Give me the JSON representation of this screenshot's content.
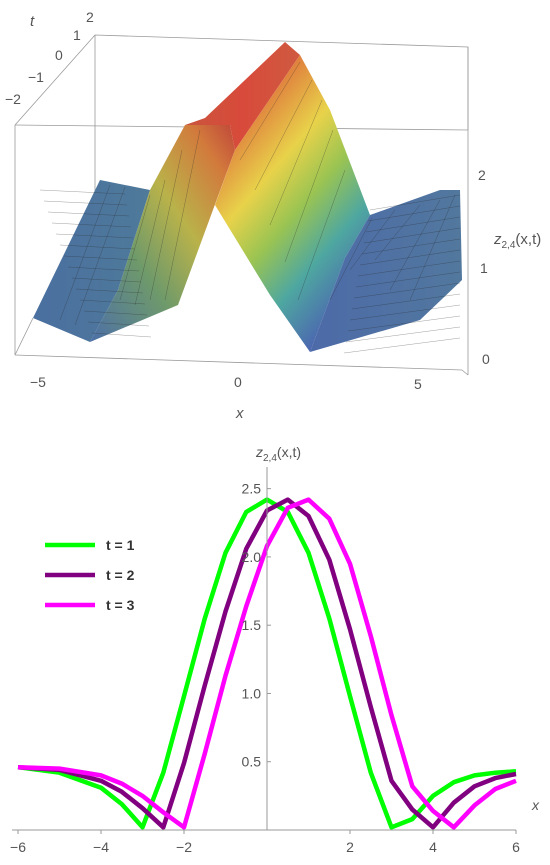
{
  "figure3d": {
    "t_axis_label": "t",
    "t_ticks": [
      "2",
      "1",
      "0",
      "−1",
      "−2"
    ],
    "x_axis_label": "x",
    "x_ticks": [
      "−5",
      "0",
      "5"
    ],
    "z_axis_label_main": "z",
    "z_axis_label_sub": "2,4",
    "z_axis_label_args": "(x,t)",
    "z_ticks": [
      "2",
      "1",
      "0"
    ]
  },
  "chart_data": {
    "type": "line",
    "ylabel_main": "z",
    "ylabel_sub": "2,4",
    "ylabel_args": "(x,t)",
    "xlabel": "x",
    "xlim": [
      -6,
      6
    ],
    "ylim": [
      0,
      2.6
    ],
    "x_ticks": [
      "−6",
      "−4",
      "−2",
      "2",
      "4",
      "6"
    ],
    "x_tick_values": [
      -6,
      -4,
      -2,
      2,
      4,
      6
    ],
    "y_ticks": [
      "0.5",
      "1.0",
      "1.5",
      "2.0",
      "2.5"
    ],
    "y_tick_values": [
      0.5,
      1.0,
      1.5,
      2.0,
      2.5
    ],
    "x": [
      -6,
      -5,
      -4,
      -3.5,
      -3,
      -2.5,
      -2,
      -1.5,
      -1,
      -0.5,
      0,
      0.5,
      1,
      1.5,
      2,
      2.5,
      3,
      3.5,
      4,
      4.5,
      5,
      5.5,
      6
    ],
    "series": [
      {
        "name": "t = 1",
        "color": "#00ff00",
        "values": [
          0.46,
          0.42,
          0.31,
          0.19,
          0.02,
          0.42,
          0.98,
          1.55,
          2.03,
          2.33,
          2.42,
          2.33,
          2.03,
          1.55,
          0.98,
          0.42,
          0.02,
          0.08,
          0.25,
          0.35,
          0.4,
          0.42,
          0.43
        ]
      },
      {
        "name": "t = 2",
        "color": "#800080",
        "values": [
          0.46,
          0.44,
          0.36,
          0.28,
          0.16,
          0.02,
          0.49,
          1.06,
          1.6,
          2.06,
          2.34,
          2.42,
          2.3,
          1.98,
          1.47,
          0.9,
          0.36,
          0.15,
          0.02,
          0.2,
          0.32,
          0.38,
          0.41
        ]
      },
      {
        "name": "t = 3",
        "color": "#ff00ff",
        "values": [
          0.46,
          0.45,
          0.4,
          0.34,
          0.25,
          0.13,
          0.02,
          0.56,
          1.13,
          1.64,
          2.08,
          2.36,
          2.42,
          2.28,
          1.95,
          1.42,
          0.84,
          0.32,
          0.14,
          0.02,
          0.18,
          0.3,
          0.36
        ]
      }
    ]
  }
}
